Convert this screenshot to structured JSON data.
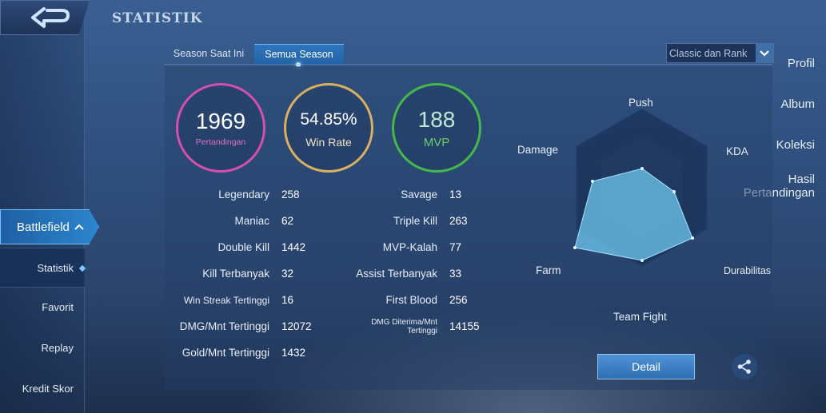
{
  "page_title": "STATISTIK",
  "sidebar": {
    "items": [
      {
        "label": "Profil"
      },
      {
        "label": "Album"
      },
      {
        "label": "Koleksi"
      },
      {
        "label_line1": "Hasil",
        "label_line2": "Pertandingan"
      },
      {
        "label": "Battlefield"
      }
    ],
    "sub_items": [
      {
        "label": "Statistik"
      },
      {
        "label": "Favorit"
      },
      {
        "label": "Replay"
      },
      {
        "label": "Kredit Skor"
      }
    ]
  },
  "tabs": [
    {
      "label": "Season Saat Ini"
    },
    {
      "label": "Semua Season"
    }
  ],
  "mode_select": {
    "value": "Classic dan Rank"
  },
  "summary": {
    "matches": {
      "value": "1969",
      "label": "Pertandingan"
    },
    "win_rate": {
      "value": "54.85%",
      "label": "Win Rate"
    },
    "mvp": {
      "value": "188",
      "label": "MVP"
    }
  },
  "stats_left": [
    {
      "label": "Legendary",
      "value": "258"
    },
    {
      "label": "Maniac",
      "value": "62"
    },
    {
      "label": "Double Kill",
      "value": "1442"
    },
    {
      "label": "Kill Terbanyak",
      "value": "32"
    },
    {
      "label": "Win Streak Tertinggi",
      "value": "16"
    },
    {
      "label": "DMG/Mnt Tertinggi",
      "value": "12072"
    },
    {
      "label": "Gold/Mnt Tertinggi",
      "value": "1432"
    }
  ],
  "stats_right": [
    {
      "label": "Savage",
      "value": "13"
    },
    {
      "label": "Triple Kill",
      "value": "263"
    },
    {
      "label": "MVP-Kalah",
      "value": "77"
    },
    {
      "label": "Assist Terbanyak",
      "value": "33"
    },
    {
      "label": "First Blood",
      "value": "256"
    },
    {
      "label_line1": "DMG Diterima/Mnt",
      "label_line2": "Tertinggi",
      "value": "14155"
    }
  ],
  "radar": {
    "axes": [
      "Push",
      "KDA",
      "Durabilitas",
      "Team Fight",
      "Farm",
      "Damage"
    ]
  },
  "buttons": {
    "detail": "Detail"
  },
  "colors": {
    "matches_ring": "#d54fb0",
    "win_rate_ring": "#d9b061",
    "mvp_ring": "#46b84a",
    "accent": "#2d75bf"
  }
}
